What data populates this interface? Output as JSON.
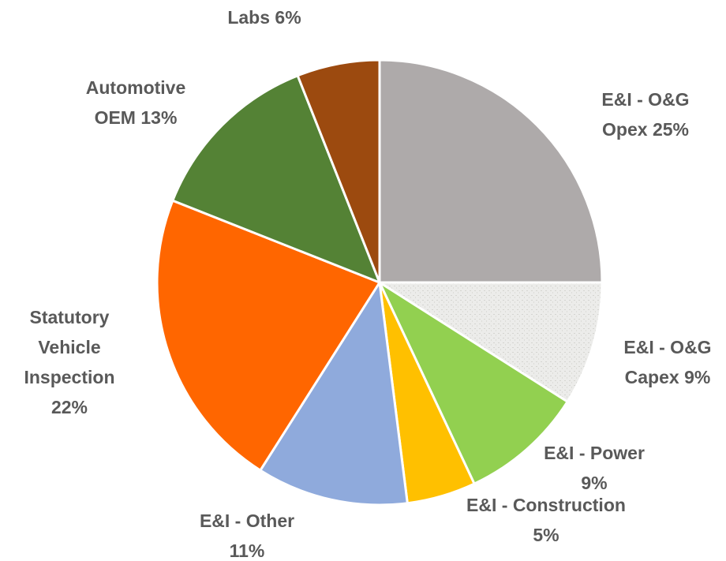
{
  "chart_data": {
    "type": "pie",
    "categories": [
      "E&I - O&G Opex",
      "E&I - O&G Capex",
      "E&I - Power",
      "E&I - Construction",
      "E&I - Other",
      "Statutory Vehicle Inspection",
      "Automotive OEM",
      "Labs"
    ],
    "values": [
      25,
      9,
      9,
      5,
      11,
      22,
      13,
      6
    ],
    "value_labels": [
      "25%",
      "9%",
      "9%",
      "5%",
      "11%",
      "22%",
      "13%",
      "6%"
    ],
    "colors": [
      "#aeaaaa",
      "#e9e9e6",
      "#92d050",
      "#ffc000",
      "#8faadc",
      "#ff6600",
      "#548235",
      "#9c4a0f"
    ]
  }
}
